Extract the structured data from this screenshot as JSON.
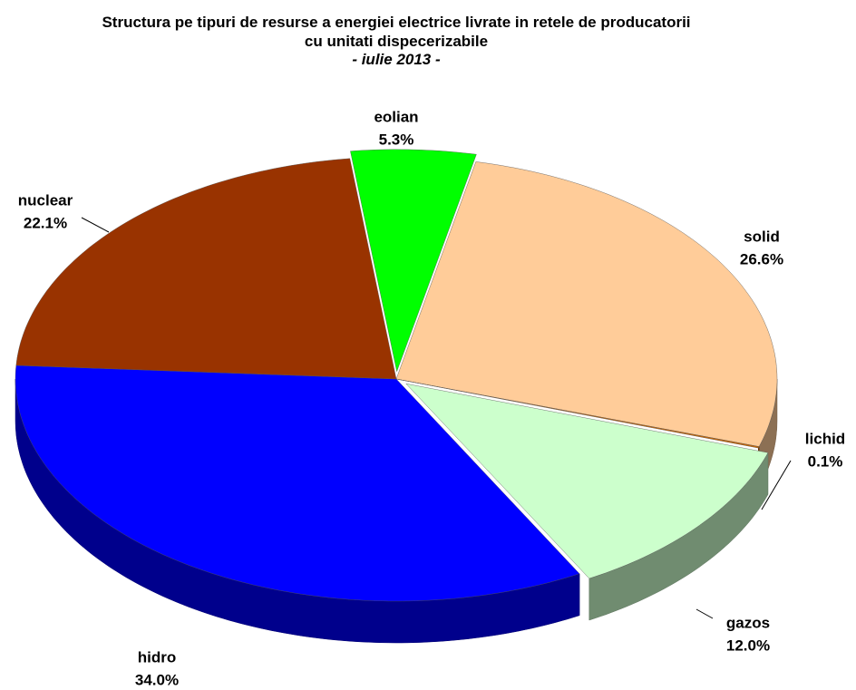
{
  "chart_data": {
    "type": "pie3d",
    "title": "Structura pe tipuri de resurse a energiei electrice livrate in retele de producatorii cu unitati dispecerizabile",
    "subtitle": "- iulie 2013 -",
    "categories": [
      "eolian",
      "solid",
      "lichid",
      "gazos",
      "hidro",
      "nuclear"
    ],
    "values": [
      5.3,
      26.6,
      0.1,
      12.0,
      34.0,
      22.1
    ],
    "value_labels": [
      "5.3%",
      "26.6%",
      "0.1%",
      "12.0%",
      "34.0%",
      "22.1%"
    ],
    "colors": [
      "#00ff00",
      "#ffcc99",
      "#cc6600",
      "#ccffcc",
      "#0000ff",
      "#993300"
    ]
  }
}
